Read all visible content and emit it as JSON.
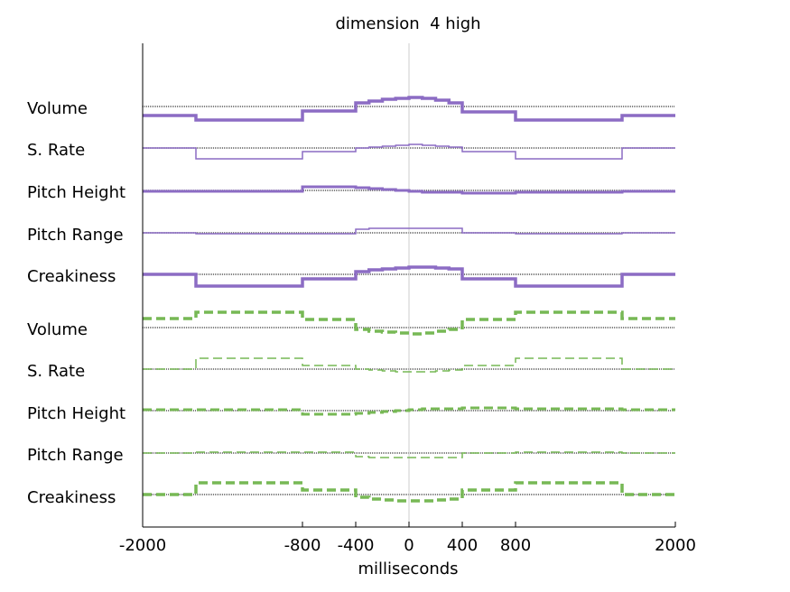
{
  "chart_data": {
    "type": "line",
    "title": "dimension  4 high",
    "xlabel": "milliseconds",
    "ylabel": "",
    "xlim": [
      -2000,
      2000
    ],
    "xticks": [
      -2000,
      -800,
      -400,
      0,
      400,
      800,
      2000
    ],
    "xtick_labels": [
      "-2000",
      "-800",
      "-400",
      "0",
      "400",
      "800",
      "2000"
    ],
    "grid": false,
    "zero_line": true,
    "x_edges": [
      -2000,
      -1600,
      -800,
      -400,
      -300,
      -200,
      -100,
      0,
      100,
      200,
      300,
      400,
      800,
      1600,
      2000
    ],
    "groups": [
      {
        "color": "#8c6cc4",
        "linestyle": "solid",
        "tracks": [
          {
            "label": "Volume",
            "line_width": 3.5,
            "values": [
              -10,
              -15,
              -5,
              4,
              6,
              8,
              9,
              10,
              9,
              7,
              4,
              -6,
              -15,
              -10
            ]
          },
          {
            "label": "S. Rate",
            "line_width": 1.5,
            "values": [
              0,
              -12,
              -4,
              0,
              1,
              2,
              3,
              4,
              3,
              2,
              1,
              -4,
              -12,
              0
            ]
          },
          {
            "label": "Pitch Height",
            "line_width": 3,
            "values": [
              -1,
              -1,
              4,
              3,
              2,
              1,
              0,
              -1,
              -2,
              -2,
              -2,
              -3,
              -2,
              -1
            ]
          },
          {
            "label": "Pitch Range",
            "line_width": 1.5,
            "values": [
              0,
              -1,
              -1,
              4,
              5,
              5,
              5,
              5,
              5,
              5,
              5,
              0,
              -1,
              0
            ]
          },
          {
            "label": "Creakiness",
            "line_width": 3.5,
            "values": [
              0,
              -13,
              -5,
              3,
              5,
              6,
              7,
              8,
              8,
              7,
              6,
              -5,
              -13,
              0
            ]
          }
        ]
      },
      {
        "color": "#77b855",
        "linestyle": "dashed",
        "tracks": [
          {
            "label": "Volume",
            "line_width": 3.5,
            "values": [
              10,
              17,
              9,
              -2,
              -4,
              -5,
              -6,
              -7,
              -6,
              -4,
              -2,
              9,
              17,
              10
            ]
          },
          {
            "label": "S. Rate",
            "line_width": 1.5,
            "values": [
              0,
              12,
              4,
              0,
              -1,
              -2,
              -3,
              -3,
              -3,
              -2,
              -1,
              4,
              12,
              0
            ]
          },
          {
            "label": "Pitch Height",
            "line_width": 3,
            "values": [
              1,
              1,
              -4,
              -3,
              -2,
              -1,
              0,
              1,
              2,
              2,
              2,
              3,
              2,
              1
            ]
          },
          {
            "label": "Pitch Range",
            "line_width": 1.5,
            "values": [
              0,
              1,
              1,
              -4,
              -5,
              -5,
              -5,
              -5,
              -5,
              -5,
              -5,
              0,
              1,
              0
            ]
          },
          {
            "label": "Creakiness",
            "line_width": 3.5,
            "values": [
              0,
              13,
              5,
              -3,
              -5,
              -6,
              -7,
              -7,
              -7,
              -6,
              -5,
              5,
              13,
              0
            ]
          }
        ]
      }
    ]
  }
}
